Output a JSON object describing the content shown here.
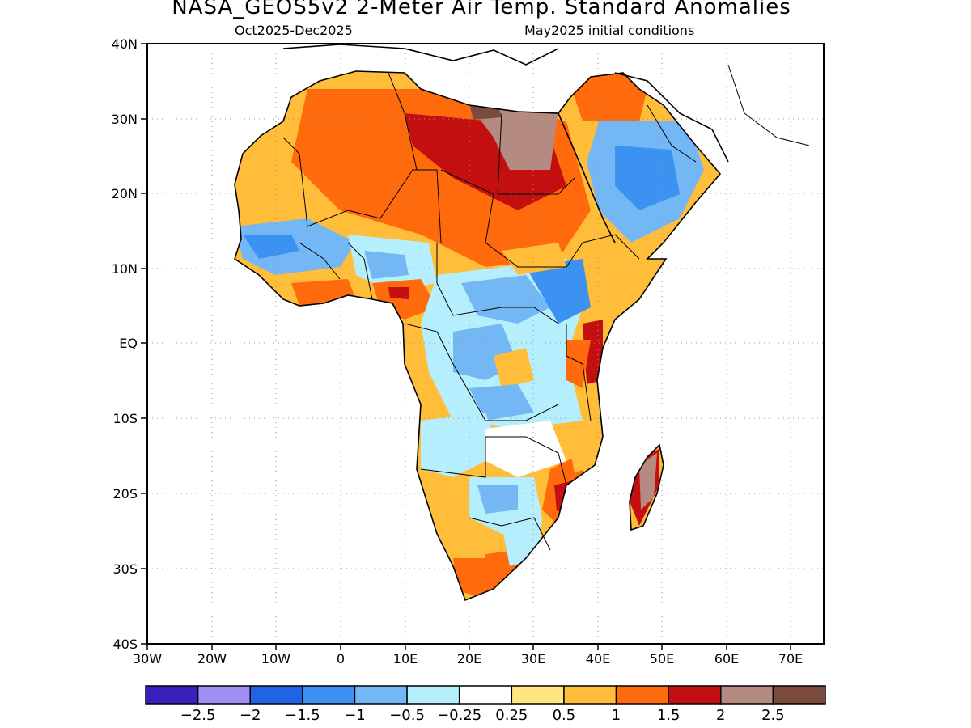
{
  "header": {
    "title": "NASA_GEOS5v2 2-Meter Air Temp. Standard Anomalies",
    "period": "Oct2025-Dec2025",
    "init": "May2025 initial conditions"
  },
  "axes": {
    "lon_labels": [
      "30W",
      "20W",
      "10W",
      "0",
      "10E",
      "20E",
      "30E",
      "40E",
      "50E",
      "60E",
      "70E"
    ],
    "lat_labels": [
      "40N",
      "30N",
      "20N",
      "10N",
      "EQ",
      "10S",
      "20S",
      "30S",
      "40S"
    ]
  },
  "colorbar": {
    "colors": [
      "#3a1fbd",
      "#9f8ff3",
      "#1f64e3",
      "#3b92f1",
      "#74b7f5",
      "#b5eefc",
      "#ffffff",
      "#ffe67e",
      "#ffbd3a",
      "#ff6a0d",
      "#c30f0f",
      "#b58a80",
      "#7a4b3d"
    ],
    "labels": [
      "-2.5",
      "-2",
      "-1.5",
      "-1",
      "-0.5",
      "-0.25",
      "0.25",
      "0.5",
      "1",
      "1.5",
      "2",
      "2.5"
    ]
  },
  "colors": {
    "land_outline": "#000000",
    "grid": "#999999"
  }
}
